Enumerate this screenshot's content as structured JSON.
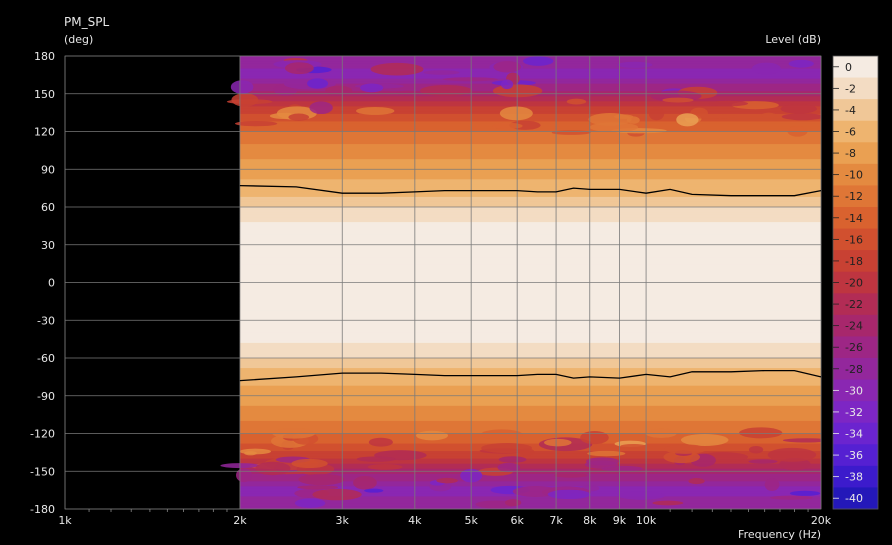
{
  "chart_data": {
    "type": "heatmap",
    "title": "PM_SPL",
    "ylabel": "(deg)",
    "xlabel": "Frequency  (Hz)",
    "colorbar_label": "Level  (dB)",
    "x_scale": "log",
    "xlim": [
      1000,
      20000
    ],
    "ylim": [
      -180,
      180
    ],
    "x_ticks": [
      {
        "value": 1000,
        "label": "1k"
      },
      {
        "value": 2000,
        "label": "2k"
      },
      {
        "value": 3000,
        "label": "3k"
      },
      {
        "value": 4000,
        "label": "4k"
      },
      {
        "value": 5000,
        "label": "5k"
      },
      {
        "value": 6000,
        "label": "6k"
      },
      {
        "value": 7000,
        "label": "7k"
      },
      {
        "value": 8000,
        "label": "8k"
      },
      {
        "value": 9000,
        "label": "9k"
      },
      {
        "value": 10000,
        "label": "10k"
      },
      {
        "value": 20000,
        "label": "20k"
      }
    ],
    "y_ticks": [
      180,
      150,
      120,
      90,
      60,
      30,
      0,
      -30,
      -60,
      -90,
      -120,
      -150,
      -180
    ],
    "data_x_range": [
      2000,
      20000
    ],
    "colorbar": {
      "min": -40,
      "max": 0,
      "step": 2,
      "labels": [
        "0",
        "-2",
        "-4",
        "-6",
        "-8",
        "-10",
        "-12",
        "-14",
        "-16",
        "-18",
        "-20",
        "-22",
        "-24",
        "-26",
        "-28",
        "-30",
        "-32",
        "-34",
        "-36",
        "-38",
        "-40"
      ],
      "colors": [
        "#f5ebe2",
        "#f3dcc3",
        "#f0c797",
        "#eeb46f",
        "#eaa052",
        "#e48a40",
        "#df7636",
        "#d9622f",
        "#d1502f",
        "#c84133",
        "#be3540",
        "#b22c55",
        "#a7276c",
        "#9d2685",
        "#93279c",
        "#8a27b2",
        "#7d26c4",
        "#6b24cf",
        "#5520d2",
        "#3c1bcc",
        "#2418b9"
      ]
    },
    "level_profile_by_abs_angle": [
      {
        "angle": 0,
        "db": 0
      },
      {
        "angle": 45,
        "db": 0
      },
      {
        "angle": 50,
        "db": -2
      },
      {
        "angle": 60,
        "db": -3
      },
      {
        "angle": 68,
        "db": -5
      },
      {
        "angle": 75,
        "db": -6
      },
      {
        "angle": 90,
        "db": -8
      },
      {
        "angle": 105,
        "db": -10
      },
      {
        "angle": 120,
        "db": -13
      },
      {
        "angle": 135,
        "db": -17
      },
      {
        "angle": 150,
        "db": -24
      },
      {
        "angle": 165,
        "db": -30
      },
      {
        "angle": 180,
        "db": -27
      }
    ],
    "series": [
      {
        "x": [
          2000,
          2500,
          3000,
          3500,
          4000,
          4500,
          5000,
          5500,
          6000,
          6500,
          7000,
          7500,
          8000,
          9000,
          10000,
          11000,
          12000,
          14000,
          16000,
          18000,
          20000
        ],
        "y": [
          77,
          76,
          71,
          71,
          72,
          73,
          73,
          73,
          73,
          72,
          72,
          75,
          74,
          74,
          71,
          74,
          70,
          69,
          69,
          69,
          73
        ]
      },
      {
        "x": [
          2000,
          2500,
          3000,
          3500,
          4000,
          4500,
          5000,
          5500,
          6000,
          6500,
          7000,
          7500,
          8000,
          9000,
          10000,
          11000,
          12000,
          14000,
          16000,
          18000,
          20000
        ],
        "y": [
          -78,
          -75,
          -72,
          -72,
          -73,
          -74,
          -74,
          -74,
          -74,
          -73,
          -73,
          -76,
          -75,
          -76,
          -73,
          -75,
          -71,
          -71,
          -70,
          -70,
          -75
        ]
      }
    ]
  }
}
